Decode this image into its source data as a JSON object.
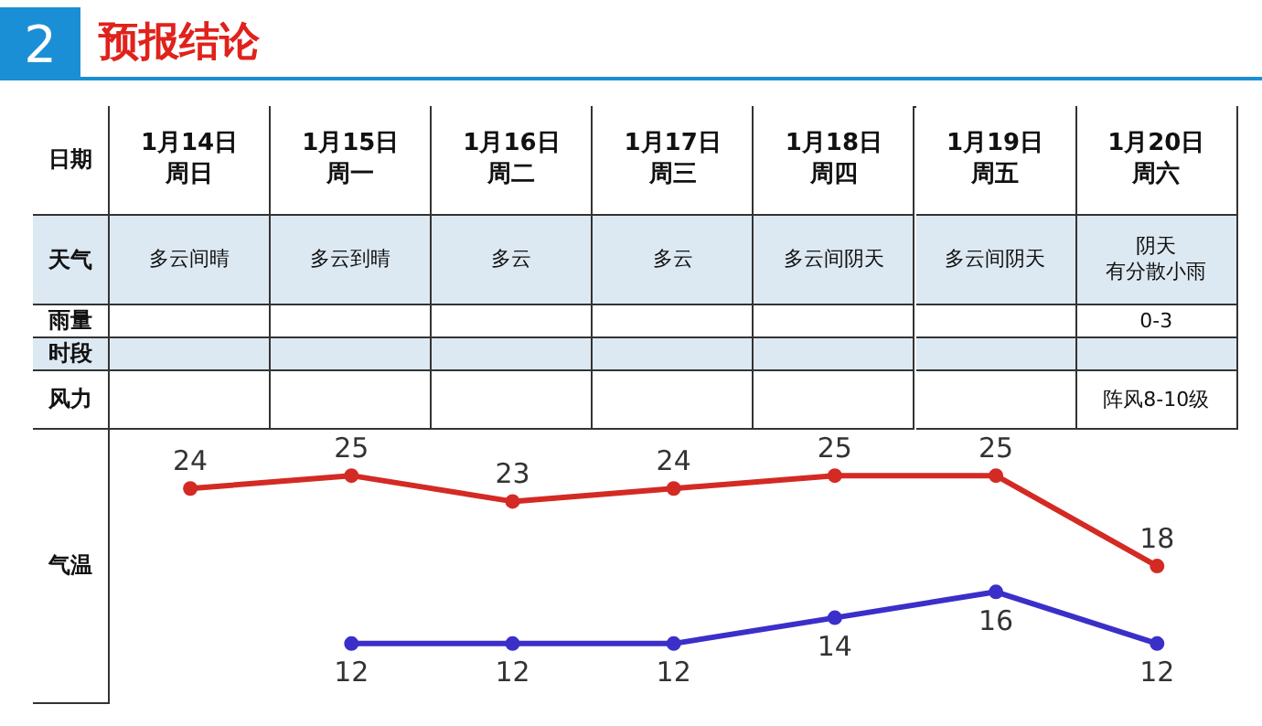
{
  "chart_data": {
    "type": "line",
    "title": "预报结论",
    "categories": [
      "1月14日周日",
      "1月15日周一",
      "1月16日周二",
      "1月17日周三",
      "1月18日周四",
      "1月19日周五",
      "1月20日周六"
    ],
    "series": [
      {
        "color": "#d42a24",
        "values": [
          24,
          25,
          23,
          24,
          25,
          25,
          18
        ]
      },
      {
        "color": "#3b2fc9",
        "values": [
          null,
          12,
          12,
          12,
          14,
          16,
          12
        ]
      }
    ],
    "data_labels": true,
    "marker": "circle",
    "annotations": [
      "2",
      "日期",
      "天气",
      "雨量",
      "时段",
      "风力",
      "气温",
      "多云间晴",
      "多云到晴",
      "多云",
      "多云",
      "多云间阴天",
      "多云间阴天",
      "阴天",
      "有分散小雨",
      "0-3",
      "阵风8-10级"
    ]
  }
}
